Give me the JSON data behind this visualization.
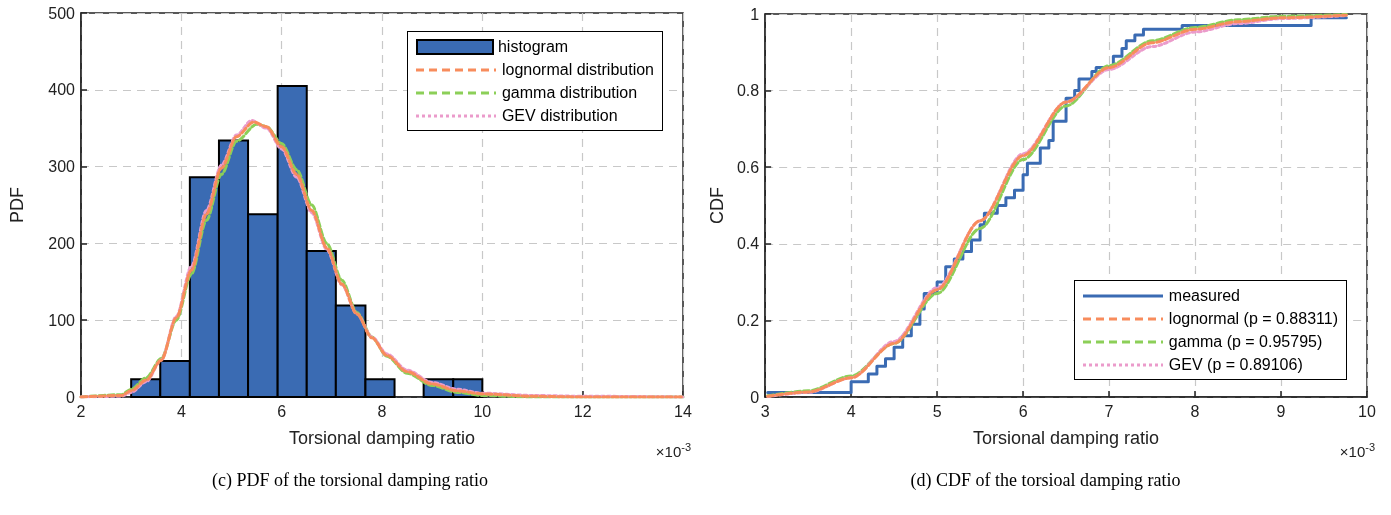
{
  "chart_data": [
    {
      "type": "histogram",
      "xlabel": "Torsional damping ratio",
      "ylabel": "PDF",
      "xlim": [
        2,
        14
      ],
      "xticks": [
        2,
        4,
        6,
        8,
        10,
        12,
        14
      ],
      "ylim": [
        0,
        500
      ],
      "yticks": [
        0,
        100,
        200,
        300,
        400,
        500
      ],
      "grid": true,
      "legend": "top right",
      "annotations": [
        "×10$^{-3}$",
        "(c) PDF of the torsional damping ratio"
      ],
      "series": [
        {
          "name": "histogram",
          "color": "#3a6bb3",
          "bins": [
            3,
            3.58,
            4.17,
            4.75,
            5.33,
            5.92,
            6.5,
            7.08,
            7.67,
            8.25,
            8.83,
            9.42,
            10
          ],
          "values": [
            23,
            47,
            286,
            334,
            238,
            405,
            190,
            119,
            23,
            0,
            23,
            23
          ]
        },
        {
          "type": "line",
          "name": "lognormal distribution",
          "color": "#f88c5c",
          "line_style": "dashed",
          "x": [
            2,
            2.8,
            3,
            3.3,
            3.6,
            3.9,
            4.2,
            4.5,
            4.8,
            5.1,
            5.44,
            5.7,
            6,
            6.3,
            6.6,
            6.9,
            7.2,
            7.5,
            7.8,
            8.1,
            8.5,
            9,
            9.5,
            10,
            11,
            12,
            14
          ],
          "values": [
            0,
            2,
            8,
            22,
            48,
            103,
            165,
            238,
            298,
            339,
            358,
            352,
            326,
            290,
            243,
            194,
            147,
            108,
            77,
            54,
            33,
            17,
            8,
            4,
            1,
            0,
            0
          ]
        },
        {
          "type": "line",
          "name": "gamma distribution",
          "color": "#8ccf58",
          "line_style": "dashed",
          "x": [
            2,
            2.8,
            3,
            3.3,
            3.6,
            3.9,
            4.2,
            4.5,
            4.8,
            5.1,
            5.5,
            5.7,
            6,
            6.3,
            6.6,
            6.9,
            7.2,
            7.5,
            7.8,
            8.1,
            8.5,
            9,
            9.5,
            10,
            11,
            12,
            14
          ],
          "values": [
            0,
            3,
            10,
            25,
            50,
            100,
            160,
            230,
            290,
            333,
            355,
            352,
            330,
            296,
            250,
            200,
            152,
            110,
            78,
            53,
            31,
            15,
            6,
            2,
            0,
            0,
            0
          ]
        },
        {
          "type": "line",
          "name": "GEV distribution",
          "color": "#eb9bcb",
          "line_style": "dotted",
          "x": [
            2,
            2.8,
            3,
            3.3,
            3.6,
            3.9,
            4.2,
            4.5,
            4.8,
            5.1,
            5.4,
            5.7,
            6,
            6.3,
            6.6,
            6.9,
            7.2,
            7.5,
            7.8,
            8.1,
            8.5,
            9,
            9.5,
            10,
            11,
            12,
            14
          ],
          "values": [
            0,
            1,
            6,
            20,
            48,
            105,
            170,
            243,
            302,
            341,
            360,
            350,
            323,
            286,
            240,
            192,
            146,
            108,
            78,
            56,
            35,
            19,
            10,
            5,
            2,
            1,
            0
          ]
        }
      ]
    },
    {
      "type": "step",
      "xlabel": "Torsional damping ratio",
      "ylabel": "CDF",
      "xlim": [
        3,
        10
      ],
      "xticks": [
        3,
        4,
        5,
        6,
        7,
        8,
        9,
        10
      ],
      "ylim": [
        0,
        1
      ],
      "yticks": [
        0,
        0.2,
        0.4,
        0.6,
        0.8,
        1
      ],
      "grid": true,
      "legend": "bottom right",
      "annotations": [
        "×10$^{-3}$",
        "(d) CDF of the torsioal damping ratio"
      ],
      "series": [
        {
          "name": "measured",
          "color": "#3a6bb3",
          "line_style": "solid",
          "x": [
            3.03,
            4.0,
            4.2,
            4.3,
            4.4,
            4.5,
            4.6,
            4.7,
            4.8,
            4.85,
            5.0,
            5.1,
            5.2,
            5.3,
            5.4,
            5.5,
            5.55,
            5.7,
            5.8,
            5.9,
            6.0,
            6.05,
            6.2,
            6.3,
            6.35,
            6.5,
            6.6,
            6.65,
            6.8,
            6.85,
            7.05,
            7.15,
            7.2,
            7.3,
            7.4,
            7.85,
            9.35,
            9.76
          ],
          "values": [
            0.012,
            0.04,
            0.06,
            0.08,
            0.1,
            0.13,
            0.16,
            0.19,
            0.23,
            0.27,
            0.3,
            0.34,
            0.36,
            0.38,
            0.41,
            0.45,
            0.48,
            0.5,
            0.52,
            0.54,
            0.58,
            0.61,
            0.65,
            0.67,
            0.72,
            0.78,
            0.8,
            0.83,
            0.85,
            0.86,
            0.89,
            0.91,
            0.93,
            0.945,
            0.96,
            0.97,
            0.99,
            0.99
          ]
        },
        {
          "type": "line",
          "name": "lognormal (p = 0.88311)",
          "color": "#f88c5c",
          "line_style": "dashed",
          "x": [
            3.03,
            3.5,
            4,
            4.5,
            5,
            5.5,
            6,
            6.5,
            7,
            7.5,
            8,
            8.5,
            9,
            9.76
          ],
          "values": [
            0.002,
            0.013,
            0.05,
            0.14,
            0.28,
            0.46,
            0.63,
            0.77,
            0.86,
            0.925,
            0.96,
            0.98,
            0.99,
            0.997
          ]
        },
        {
          "type": "line",
          "name": "gamma (p = 0.95795)",
          "color": "#8ccf58",
          "line_style": "dashed",
          "x": [
            3.03,
            3.5,
            4,
            4.5,
            5,
            5.5,
            6,
            6.5,
            7,
            7.5,
            8,
            8.5,
            9,
            9.76
          ],
          "values": [
            0.003,
            0.016,
            0.055,
            0.14,
            0.27,
            0.44,
            0.62,
            0.76,
            0.865,
            0.93,
            0.965,
            0.985,
            0.994,
            0.999
          ]
        },
        {
          "type": "line",
          "name": "GEV (p = 0.89106)",
          "color": "#eb9bcb",
          "line_style": "dotted",
          "x": [
            3.03,
            3.5,
            4,
            4.5,
            5,
            5.5,
            6,
            6.5,
            7,
            7.5,
            8,
            8.5,
            9,
            9.76
          ],
          "values": [
            0.001,
            0.012,
            0.05,
            0.145,
            0.285,
            0.46,
            0.635,
            0.77,
            0.855,
            0.915,
            0.953,
            0.975,
            0.988,
            0.996
          ]
        }
      ]
    }
  ]
}
